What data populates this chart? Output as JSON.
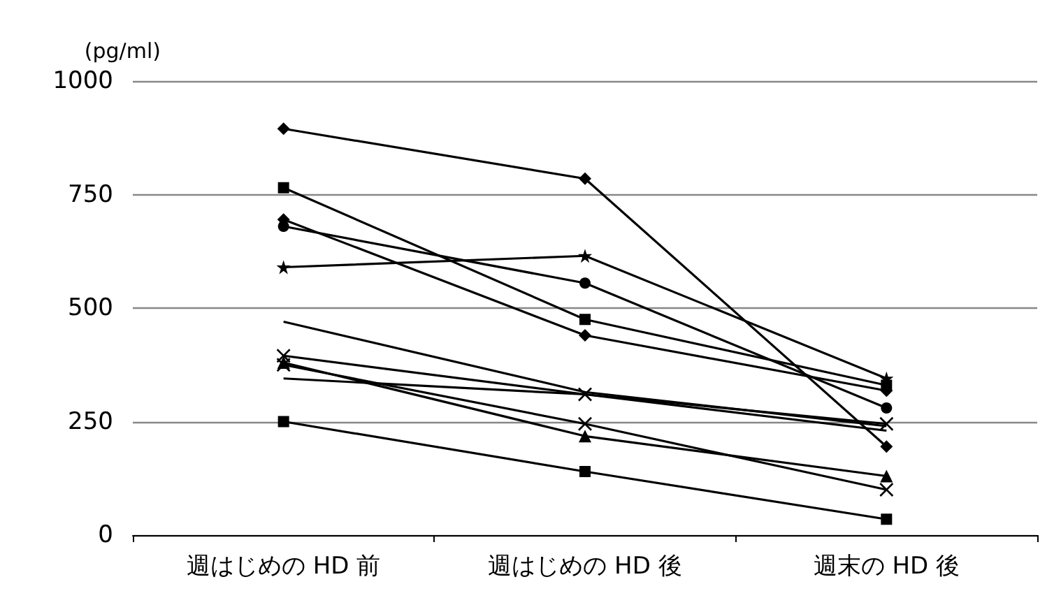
{
  "chart_data": {
    "type": "line",
    "ylabel": "(pg/ml)",
    "categories": [
      "週はじめの HD 前",
      "週はじめの HD 後",
      "週末の HD 後"
    ],
    "ylim": [
      0,
      1000
    ],
    "yticks": [
      0,
      250,
      500,
      750,
      1000
    ],
    "grid": "y",
    "series": [
      {
        "color": "#000000",
        "marker": "diamond",
        "values": [
          895,
          785,
          195
        ]
      },
      {
        "color": "#000000",
        "marker": "square",
        "values": [
          765,
          475,
          330
        ]
      },
      {
        "color": "#000000",
        "marker": "diamond",
        "values": [
          695,
          440,
          318
        ]
      },
      {
        "color": "#000000",
        "marker": "circle",
        "values": [
          680,
          555,
          280
        ]
      },
      {
        "color": "#000000",
        "marker": "star",
        "values": [
          590,
          615,
          345
        ]
      },
      {
        "color": "#000000",
        "marker": "none",
        "values": [
          470,
          315,
          240
        ]
      },
      {
        "color": "#000000",
        "marker": "cross",
        "values": [
          395,
          310,
          245
        ]
      },
      {
        "color": "#000000",
        "marker": "none",
        "values": [
          345,
          310,
          230
        ]
      },
      {
        "color": "#000000",
        "marker": "triangle",
        "values": [
          380,
          218,
          130
        ]
      },
      {
        "color": "#000000",
        "marker": "cross",
        "values": [
          375,
          245,
          100
        ]
      },
      {
        "color": "#000000",
        "marker": "square",
        "values": [
          250,
          140,
          35
        ]
      }
    ]
  }
}
